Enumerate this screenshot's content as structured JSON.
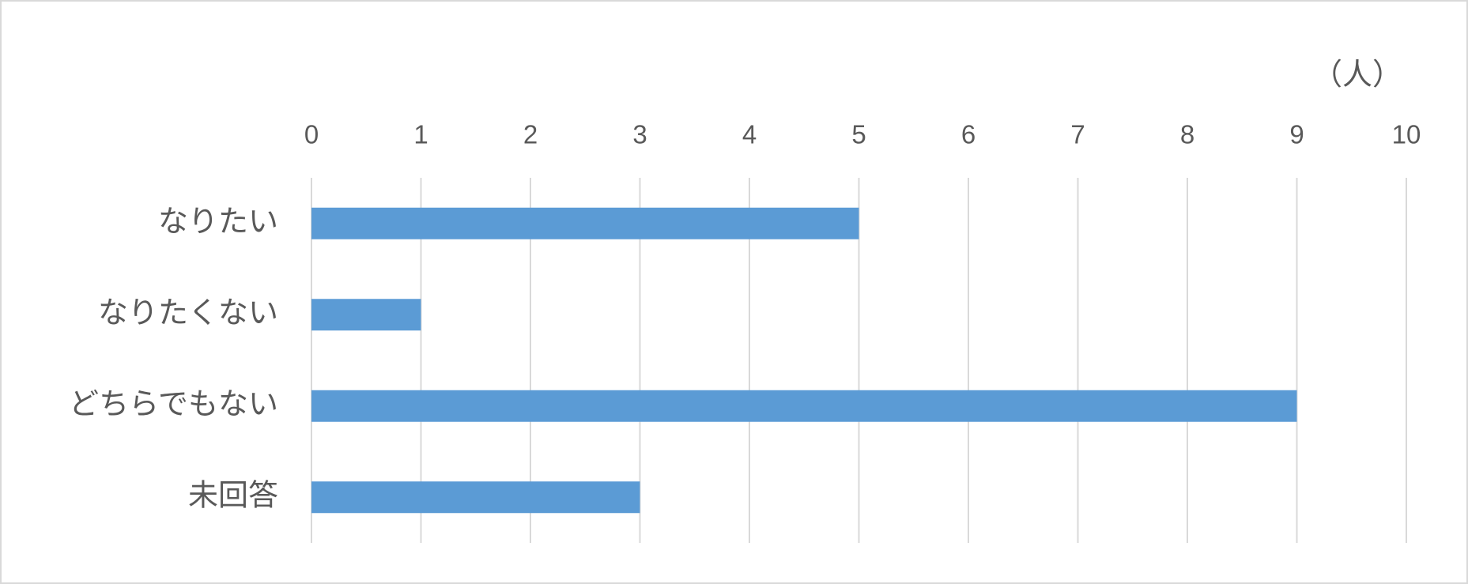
{
  "chart_data": {
    "type": "bar",
    "orientation": "horizontal",
    "x_label": "（人）",
    "categories": [
      "なりたい",
      "なりたくない",
      "どちらでもない",
      "未回答"
    ],
    "values": [
      5,
      1,
      9,
      3
    ],
    "color": "#5b9bd5",
    "xlim": [
      0,
      10
    ],
    "xticks": [
      0,
      1,
      2,
      3,
      4,
      5,
      6,
      7,
      8,
      9,
      10
    ],
    "grid": true
  }
}
